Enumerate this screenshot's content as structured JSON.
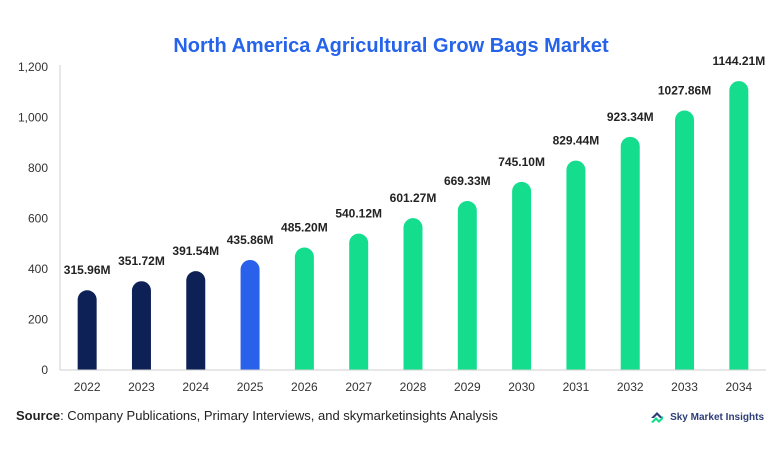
{
  "chart_data": {
    "type": "bar",
    "title": "North America Agricultural Grow Bags Market",
    "xlabel": "",
    "ylabel": "",
    "ylim": [
      0,
      1200
    ],
    "yticks": [
      0,
      200,
      400,
      600,
      800,
      1000,
      1200
    ],
    "ytick_labels": [
      "0",
      "200",
      "400",
      "600",
      "800",
      "1,000",
      "1,200"
    ],
    "grid": false,
    "categories": [
      "2022",
      "2023",
      "2024",
      "2025",
      "2026",
      "2027",
      "2028",
      "2029",
      "2030",
      "2031",
      "2032",
      "2033",
      "2034"
    ],
    "values": [
      315.96,
      351.72,
      391.54,
      435.86,
      485.2,
      540.12,
      601.27,
      669.33,
      745.1,
      829.44,
      923.34,
      1027.86,
      1144.21
    ],
    "value_labels": [
      "315.96M",
      "351.72M",
      "391.54M",
      "435.86M",
      "485.20M",
      "540.12M",
      "601.27M",
      "669.33M",
      "745.10M",
      "829.44M",
      "923.34M",
      "1027.86M",
      "1144.21M"
    ],
    "bar_colors": [
      "#0d2156",
      "#0d2156",
      "#0d2156",
      "#2961ea",
      "#14dd8e",
      "#14dd8e",
      "#14dd8e",
      "#14dd8e",
      "#14dd8e",
      "#14dd8e",
      "#14dd8e",
      "#14dd8e",
      "#14dd8e"
    ]
  },
  "colors": {
    "title": "#2563eb",
    "historical": "#0d2156",
    "current": "#2961ea",
    "forecast": "#14dd8e",
    "axis": "#cfcfcf"
  },
  "footer": {
    "source_label": "Source",
    "source_text": ": Company Publications, Primary Interviews, and skymarketinsights Analysis",
    "brand": "Sky Market Insights",
    "brand_icon": "sky-market-insights-logo"
  }
}
